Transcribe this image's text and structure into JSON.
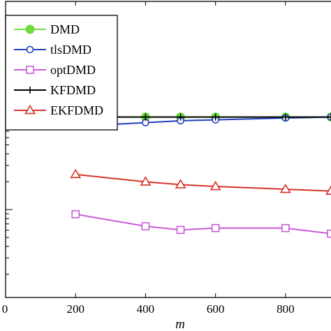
{
  "chart_data": {
    "type": "line",
    "xlabel": "m",
    "ylabel": "",
    "title": "",
    "xlim": [
      0,
      930
    ],
    "x_ticks": [
      0,
      200,
      400,
      600,
      800
    ],
    "x_tick_labels": [
      "0",
      "200",
      "400",
      "600",
      "800"
    ],
    "y_log_scale": true,
    "ylim": [
      -2.95,
      0.25
    ],
    "y_tick_positions_log10": [
      0,
      -1,
      -2
    ],
    "grid": false,
    "legend_position": "top-left",
    "series": [
      {
        "name": "DMD",
        "color": "#6fdc3c",
        "marker": "filled-circle",
        "x": [
          200,
          400,
          500,
          600,
          800,
          930
        ],
        "log10_y": [
          -1.0,
          -1.0,
          -1.0,
          -1.0,
          -1.0,
          -1.0
        ]
      },
      {
        "name": "tlsDMD",
        "color": "#1f3fbf",
        "marker": "open-circle",
        "x": [
          200,
          400,
          500,
          600,
          800,
          930
        ],
        "log10_y": [
          -1.1,
          -1.06,
          -1.04,
          -1.03,
          -1.01,
          -1.0
        ]
      },
      {
        "name": "optDMD",
        "color": "#c95bd8",
        "marker": "open-square",
        "x": [
          200,
          400,
          500,
          600,
          800,
          930
        ],
        "log10_y": [
          -2.05,
          -2.18,
          -2.22,
          -2.2,
          -2.2,
          -2.26
        ]
      },
      {
        "name": "KFDMD",
        "color": "#000000",
        "marker": "plus",
        "x": [
          200,
          400,
          500,
          600,
          800,
          930
        ],
        "log10_y": [
          -1.0,
          -1.0,
          -1.0,
          -1.0,
          -1.0,
          -1.0
        ]
      },
      {
        "name": "EKFDMD",
        "color": "#d6332a",
        "marker": "open-triangle",
        "x": [
          200,
          400,
          500,
          600,
          800,
          930
        ],
        "log10_y": [
          -1.62,
          -1.7,
          -1.73,
          -1.75,
          -1.78,
          -1.8
        ]
      }
    ]
  }
}
